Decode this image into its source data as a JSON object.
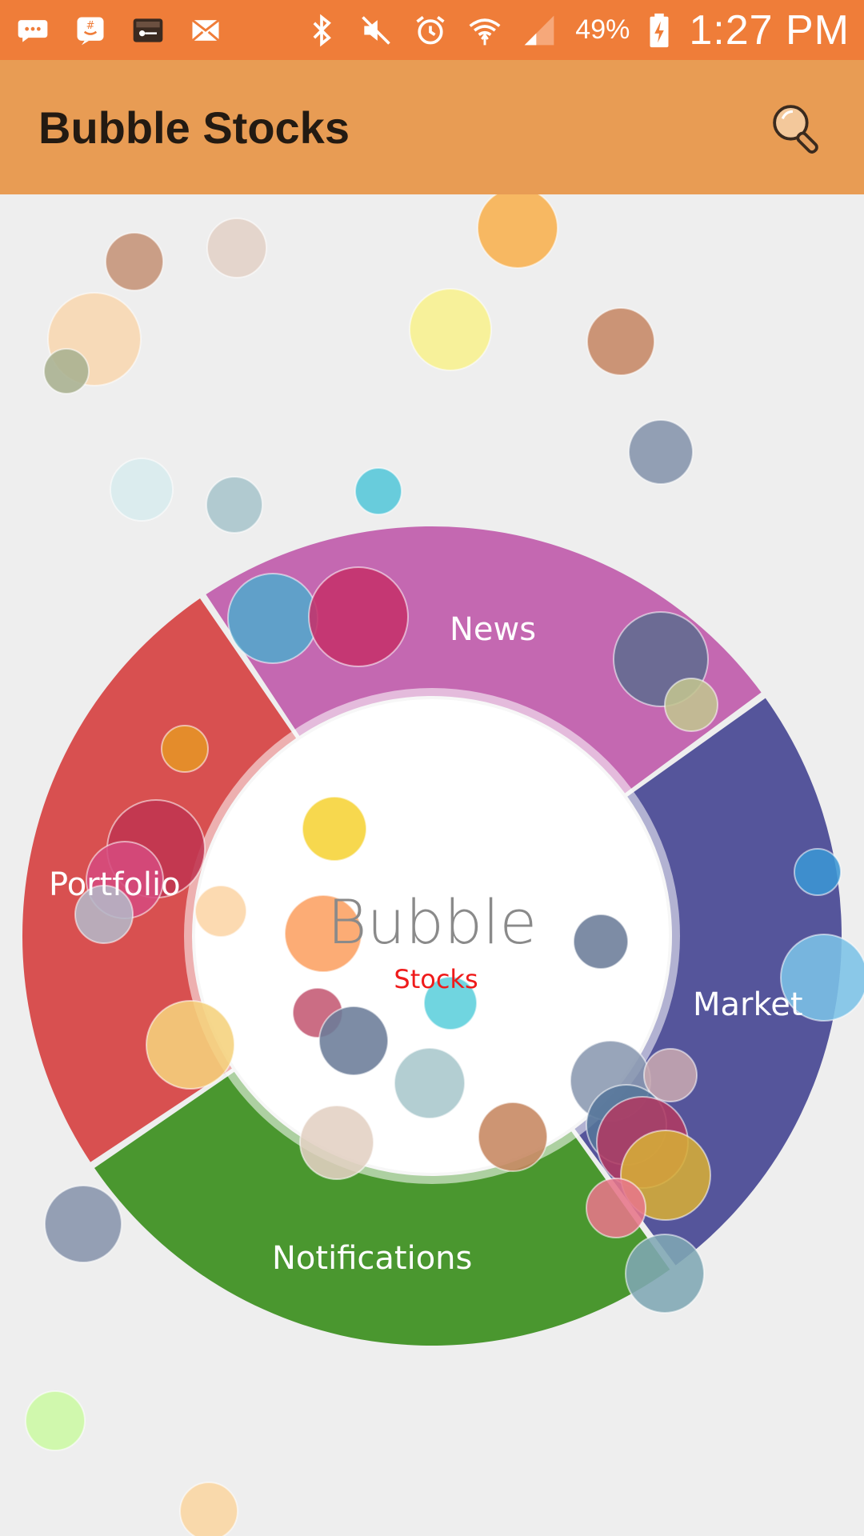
{
  "status_bar": {
    "battery_percent": "49%",
    "time": "1:27 PM",
    "left_icons": [
      "chat-bubble-icon",
      "hashtag-face-icon",
      "key-card-icon",
      "mail-icon"
    ],
    "right_icons": [
      "bluetooth-icon",
      "vibrate-mute-icon",
      "alarm-icon",
      "wifi-icon",
      "signal-icon",
      "battery-charging-icon"
    ]
  },
  "app_bar": {
    "title": "Bubble Stocks",
    "search_icon": "search-icon"
  },
  "wheel": {
    "segments": [
      {
        "label": "News",
        "color": "#c468b1"
      },
      {
        "label": "Market",
        "color": "#55559b"
      },
      {
        "label": "Notifications",
        "color": "#4a972f"
      },
      {
        "label": "Portfolio",
        "color": "#d85050"
      }
    ],
    "center_title": "Bubble",
    "center_subtitle": "Stocks"
  },
  "colors": {
    "status_bar": "#ef7d39",
    "app_bar": "#e89c54",
    "background": "#eeeeee"
  }
}
